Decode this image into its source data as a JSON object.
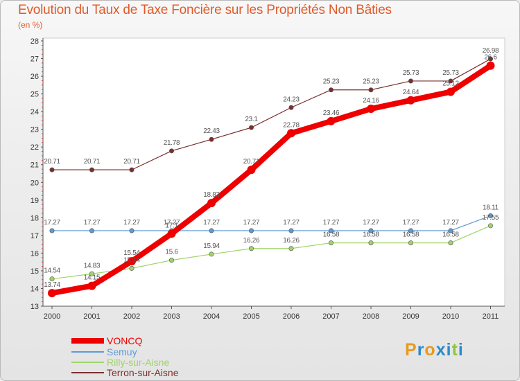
{
  "title": "Evolution du Taux de Taxe Foncière sur les Propriétés Non Bâties",
  "unit": "(en %)",
  "logo": {
    "letters": [
      "P",
      "r",
      "o",
      "x",
      "i",
      "t",
      "i"
    ],
    "colors": [
      "#e89a1e",
      "#2b8bc9",
      "#e89a1e",
      "#2b8bc9",
      "#2b8bc9",
      "#8cc63f",
      "#2b8bc9"
    ]
  },
  "chart_data": {
    "type": "line",
    "x": [
      "2000",
      "2001",
      "2002",
      "2003",
      "2004",
      "2005",
      "2006",
      "2007",
      "2008",
      "2009",
      "2010",
      "2011"
    ],
    "ylim": [
      13,
      28
    ],
    "yticks": [
      13,
      14,
      15,
      16,
      17,
      18,
      19,
      20,
      21,
      22,
      23,
      24,
      25,
      26,
      27,
      28
    ],
    "grid": false,
    "legend_position": "bottom-left",
    "series": [
      {
        "name": "VONCQ",
        "color": "#ee0000",
        "values": [
          13.74,
          14.15,
          15.54,
          17.1,
          18.83,
          20.71,
          22.78,
          23.46,
          24.16,
          24.64,
          25.12,
          26.6
        ],
        "labels": [
          "13.74",
          "14.15",
          "15.54",
          "17.1",
          "18.83",
          "20.71",
          "22.78",
          "23.46",
          "24.16",
          "24.64",
          "25.12",
          "26.6"
        ]
      },
      {
        "name": "Semuy",
        "color": "#5b9bd5",
        "values": [
          17.27,
          17.27,
          17.27,
          17.27,
          17.27,
          17.27,
          17.27,
          17.27,
          17.27,
          17.27,
          17.27,
          18.11
        ],
        "labels": [
          "17.27",
          "17.27",
          "17.27",
          "17.27",
          "17.27",
          "17.27",
          "17.27",
          "17.27",
          "17.27",
          "17.27",
          "17.27",
          "18.11"
        ]
      },
      {
        "name": "Rilly-sur-Aisne",
        "color": "#a0d468",
        "values": [
          14.54,
          14.83,
          15.14,
          15.6,
          15.94,
          16.26,
          16.26,
          16.58,
          16.58,
          16.58,
          16.58,
          17.55
        ],
        "labels": [
          "14.54",
          "14.83",
          "15.14",
          "15.6",
          "15.94",
          "16.26",
          "16.26",
          "16.58",
          "16.58",
          "16.58",
          "16.58",
          "17.55"
        ]
      },
      {
        "name": "Terron-sur-Aisne",
        "color": "#7a3030",
        "values": [
          20.71,
          20.71,
          20.71,
          21.78,
          22.43,
          23.1,
          24.23,
          25.23,
          25.23,
          25.73,
          25.73,
          26.98
        ],
        "labels": [
          "20.71",
          "20.71",
          "20.71",
          "21.78",
          "22.43",
          "23.1",
          "24.23",
          "25.23",
          "25.23",
          "25.73",
          "25.73",
          "26.98"
        ]
      }
    ]
  }
}
